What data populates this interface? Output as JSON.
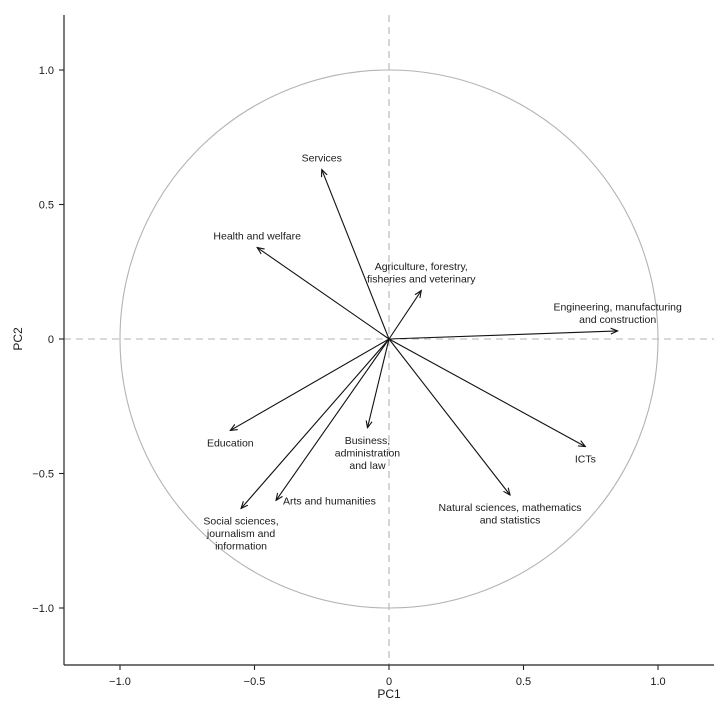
{
  "chart_data": {
    "type": "scatter",
    "subtype": "biplot-loading-vectors",
    "title": "",
    "xlabel": "PC1",
    "ylabel": "PC2",
    "xlim": [
      -1.2,
      1.2
    ],
    "ylim": [
      -1.2,
      1.2
    ],
    "x_ticks": [
      -1.0,
      -0.5,
      0,
      0.5,
      1.0
    ],
    "x_tick_labels": [
      "−1.0",
      "−0.5",
      "0",
      "0.5",
      "1.0"
    ],
    "y_ticks": [
      -1.0,
      -0.5,
      0,
      0.5,
      1.0
    ],
    "y_tick_labels": [
      "−1.0",
      "−0.5",
      "0",
      "0.5",
      "1.0"
    ],
    "unit_circle": true,
    "grid": false,
    "reference_lines": {
      "x0": "dashed",
      "y0": "dashed"
    },
    "colors": {
      "vector": "#111111",
      "circle": "#b3b3b3",
      "reference": "#b3b3b3",
      "axis": "#222222"
    },
    "vectors": [
      {
        "label": "Services",
        "lines": [
          "Services"
        ],
        "x": -0.25,
        "y": 0.63,
        "label_anchor": "above"
      },
      {
        "label": "Health and welfare",
        "lines": [
          "Health and welfare"
        ],
        "x": -0.49,
        "y": 0.34,
        "label_anchor": "above"
      },
      {
        "label": "Agriculture, forestry, fisheries and veterinary",
        "lines": [
          "Agriculture, forestry,",
          "fisheries and veterinary"
        ],
        "x": 0.12,
        "y": 0.18,
        "label_anchor": "above"
      },
      {
        "label": "Engineering, manufacturing and construction",
        "lines": [
          "Engineering, manufacturing",
          "and construction"
        ],
        "x": 0.85,
        "y": 0.03,
        "label_anchor": "above"
      },
      {
        "label": "ICTs",
        "lines": [
          "ICTs"
        ],
        "x": 0.73,
        "y": -0.4,
        "label_anchor": "below"
      },
      {
        "label": "Natural sciences, mathematics and statistics",
        "lines": [
          "Natural sciences, mathematics",
          "and statistics"
        ],
        "x": 0.45,
        "y": -0.58,
        "label_anchor": "below"
      },
      {
        "label": "Business, administration and law",
        "lines": [
          "Business,",
          "administration",
          "and law"
        ],
        "x": -0.08,
        "y": -0.33,
        "label_anchor": "below"
      },
      {
        "label": "Arts and humanities",
        "lines": [
          "Arts and humanities"
        ],
        "x": -0.42,
        "y": -0.6,
        "label_anchor": "right"
      },
      {
        "label": "Social sciences, journalism and information",
        "lines": [
          "Social sciences,",
          "journalism and",
          "information"
        ],
        "x": -0.55,
        "y": -0.63,
        "label_anchor": "below"
      },
      {
        "label": "Education",
        "lines": [
          "Education"
        ],
        "x": -0.59,
        "y": -0.34,
        "label_anchor": "below"
      }
    ]
  }
}
